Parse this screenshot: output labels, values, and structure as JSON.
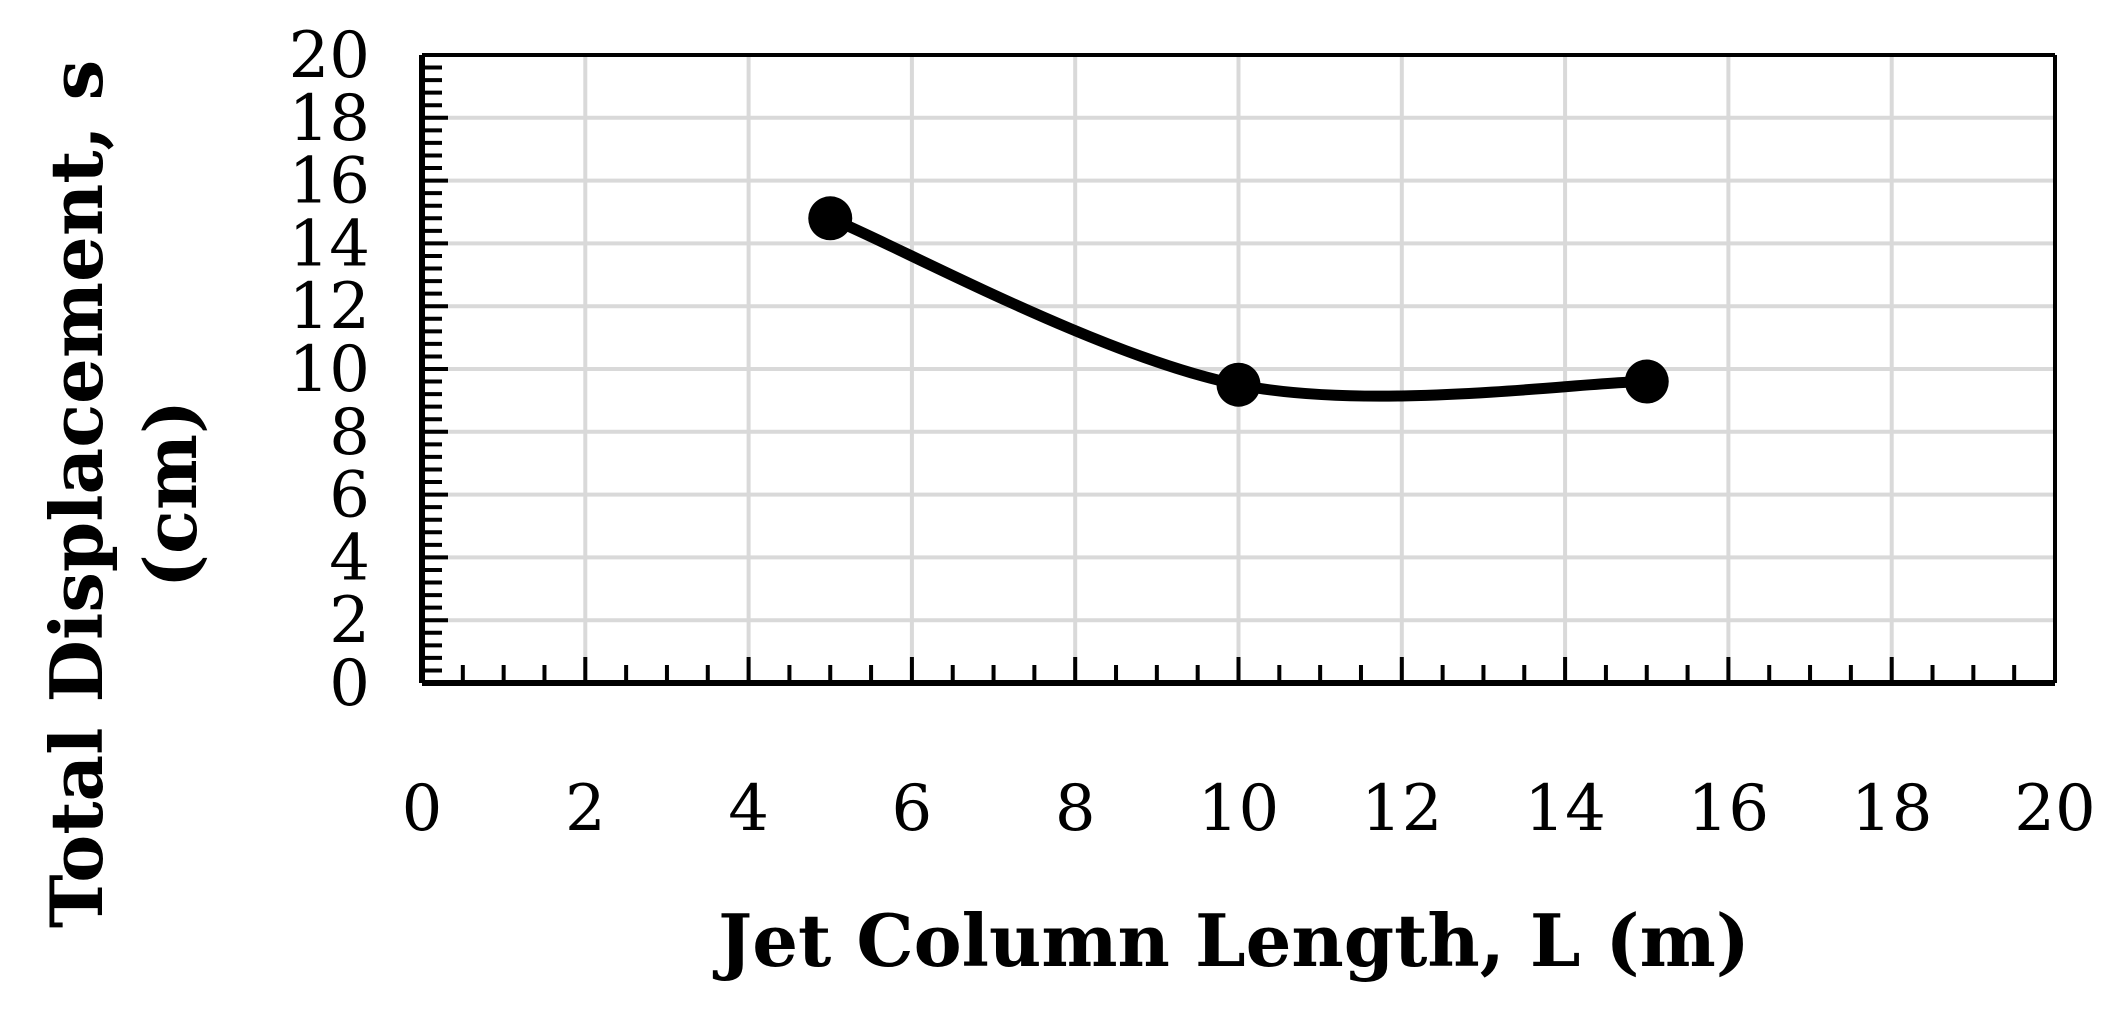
{
  "chart_data": {
    "type": "line",
    "title": "",
    "xlabel": "Jet Column Length, L (m)",
    "ylabel_line1": "Total Displacement, s",
    "ylabel_line2": "(cm)",
    "xlim": [
      0,
      20
    ],
    "ylim": [
      0,
      20
    ],
    "xticks": [
      0,
      2,
      4,
      6,
      8,
      10,
      12,
      14,
      16,
      18,
      20
    ],
    "yticks": [
      0,
      2,
      4,
      6,
      8,
      10,
      12,
      14,
      16,
      18,
      20
    ],
    "grid": true,
    "smooth": true,
    "series": [
      {
        "x": [
          5,
          10,
          15
        ],
        "y": [
          14.8,
          9.5,
          9.6
        ]
      }
    ],
    "colors": {
      "line": "#000000",
      "marker": "#000000",
      "grid": "#d9d9d9",
      "axis": "#000000"
    }
  }
}
